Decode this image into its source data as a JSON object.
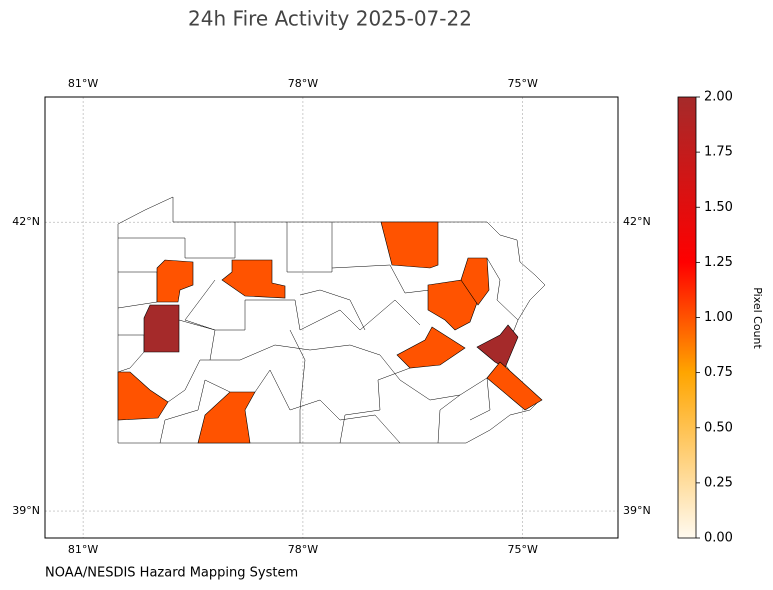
{
  "map": {
    "title": "24h Fire Activity 2025-07-22",
    "source": "NOAA/NESDIS Hazard Mapping System",
    "lonlim": [
      -81.52,
      -73.7
    ],
    "latlim": [
      38.72,
      43.3
    ],
    "lonticks": [
      {
        "value": -81,
        "label": "81°W"
      },
      {
        "value": -78,
        "label": "78°W"
      },
      {
        "value": -75,
        "label": "75°W"
      }
    ],
    "latticks": [
      {
        "value": 39,
        "label": "39°N"
      },
      {
        "value": 42,
        "label": "42°N"
      }
    ],
    "grid": true,
    "colorbar": {
      "label": "Pixel Count",
      "lim": [
        0,
        2
      ],
      "ticks": [
        {
          "value": 0,
          "label": "0.00"
        },
        {
          "value": 0.25,
          "label": "0.25"
        },
        {
          "value": 0.5,
          "label": "0.50"
        },
        {
          "value": 0.75,
          "label": "0.75"
        },
        {
          "value": 1,
          "label": "1.00"
        },
        {
          "value": 1.25,
          "label": "1.25"
        },
        {
          "value": 1.5,
          "label": "1.50"
        },
        {
          "value": 1.75,
          "label": "1.75"
        },
        {
          "value": 2,
          "label": "2.00"
        }
      ],
      "colorscale": [
        [
          0,
          "#fffaf0"
        ],
        [
          0.75,
          "#ffa500"
        ],
        [
          1.25,
          "#ff0000"
        ],
        [
          2,
          "#a52a2a"
        ]
      ]
    },
    "fire_counties": [
      1,
      2,
      1,
      1,
      1,
      1,
      1,
      1,
      1,
      2,
      1
    ]
  }
}
